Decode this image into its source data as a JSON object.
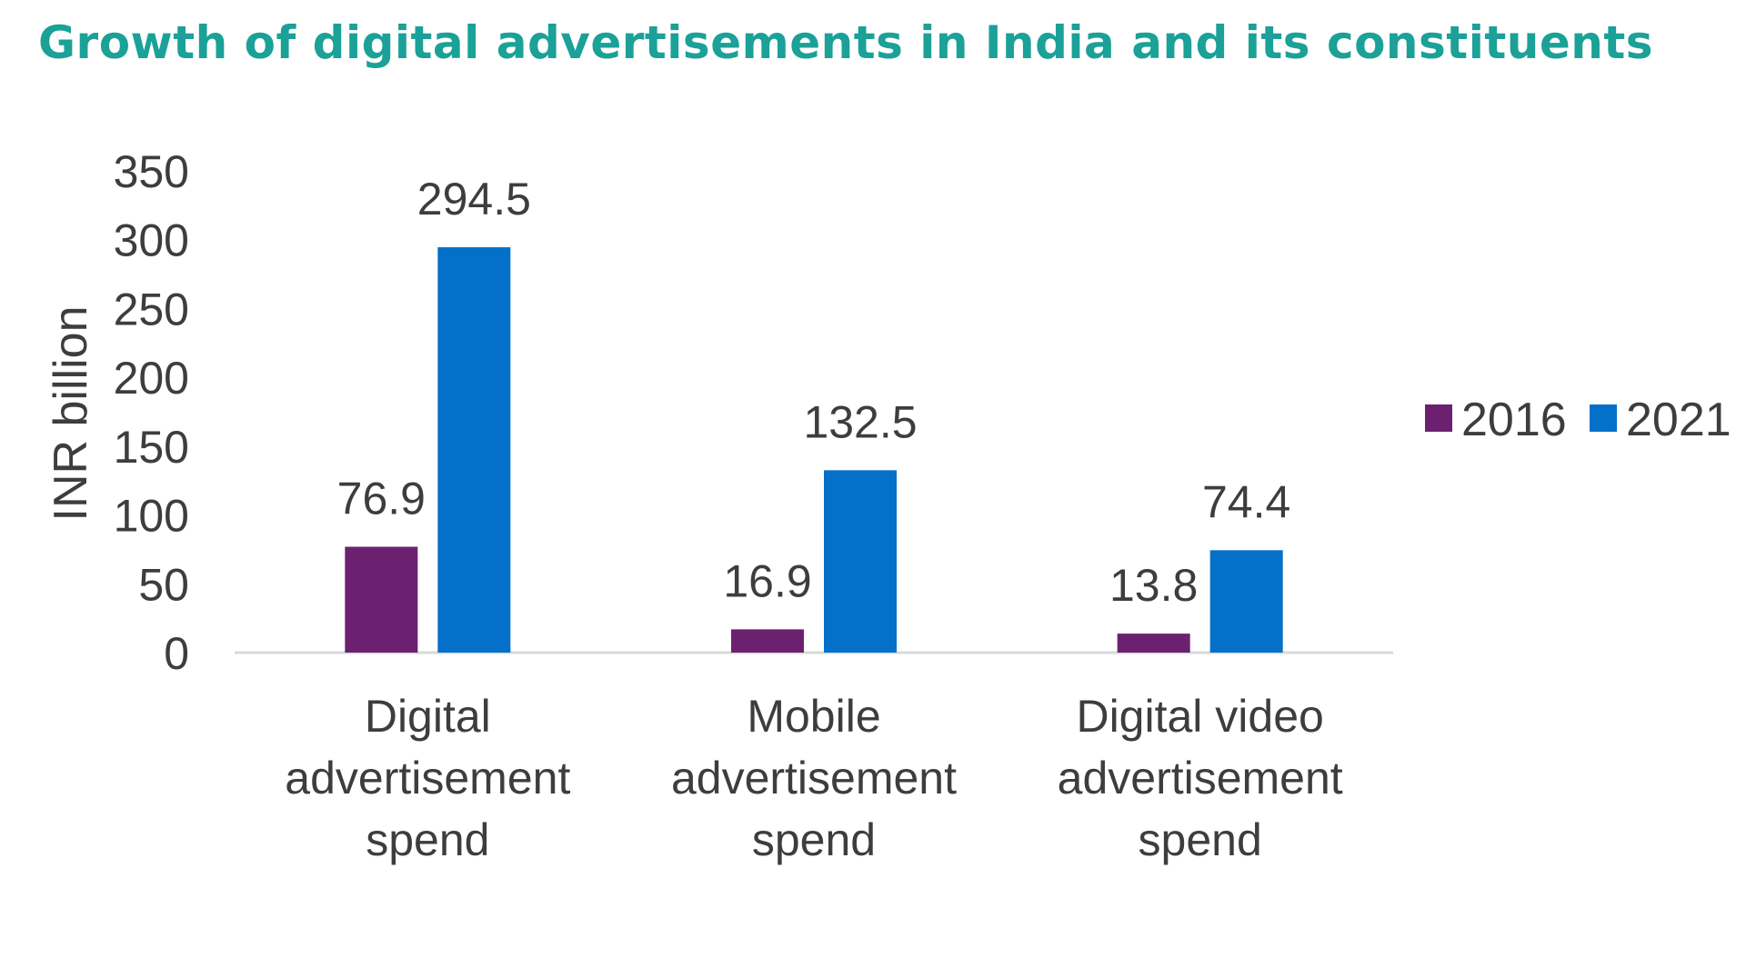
{
  "chart_data": {
    "type": "bar",
    "title": "Growth of digital advertisements in India and its constituents",
    "ylabel": "INR billion",
    "xlabel": "",
    "ylim": [
      0,
      350
    ],
    "yticks": [
      "0",
      "50",
      "100",
      "150",
      "200",
      "250",
      "300",
      "350"
    ],
    "categories": [
      [
        "Digital",
        "advertisement",
        "spend"
      ],
      [
        "Mobile",
        "advertisement",
        "spend"
      ],
      [
        "Digital video",
        "advertisement",
        "spend"
      ]
    ],
    "series": [
      {
        "name": "2016",
        "values": [
          76.9,
          16.9,
          13.8
        ],
        "labels": [
          "76.9",
          "16.9",
          "13.8"
        ],
        "color": "#6b2170"
      },
      {
        "name": "2021",
        "values": [
          294.5,
          132.5,
          74.4
        ],
        "labels": [
          "294.5",
          "132.5",
          "74.4"
        ],
        "color": "#0570c9"
      }
    ],
    "legend_position": "right",
    "grid": false
  },
  "colors": {
    "title": "#1ba197",
    "axis_line": "#d9d9d9",
    "text": "#3d3d3d"
  }
}
